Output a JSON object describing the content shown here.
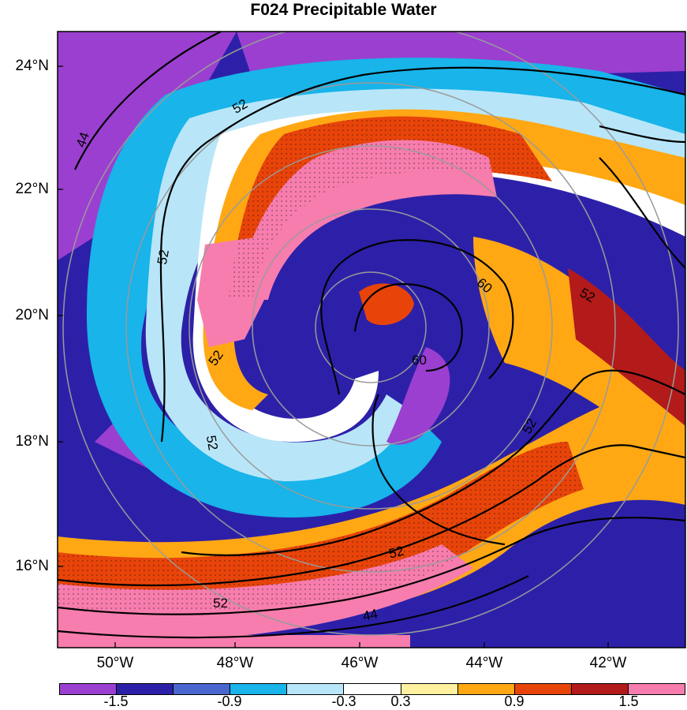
{
  "title": "F024 Precipitable Water",
  "lat_labels": [
    "24°N",
    "22°N",
    "20°N",
    "18°N",
    "16°N"
  ],
  "lon_labels": [
    "50°W",
    "48°W",
    "46°W",
    "44°W",
    "42°W"
  ],
  "colorbar": {
    "colors": [
      "#9b3fd0",
      "#2d20a8",
      "#4a66cf",
      "#18b4ea",
      "#b8e6f8",
      "#ffffff",
      "#fff1a0",
      "#ffa814",
      "#e8440a",
      "#b31a1a",
      "#f77dae"
    ],
    "labels": [
      "-1.5",
      "-0.9",
      "-0.3",
      "0.3",
      "0.9",
      "1.5"
    ]
  },
  "contour_labels": [
    "44",
    "52",
    "52",
    "52",
    "52",
    "60",
    "60",
    "52",
    "52",
    "52",
    "44",
    "52"
  ]
}
